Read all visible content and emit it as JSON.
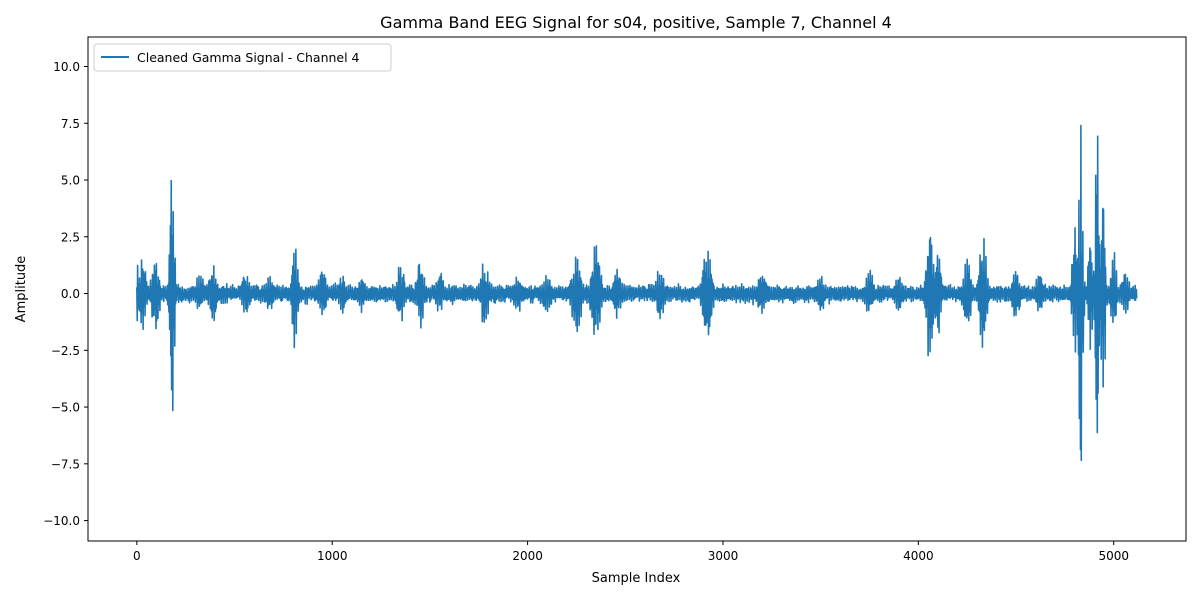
{
  "chart_data": {
    "type": "line",
    "title": "Gamma Band EEG Signal for s04, positive, Sample 7, Channel 4",
    "xlabel": "Sample Index",
    "ylabel": "Amplitude",
    "xlim": [
      -250,
      5370
    ],
    "ylim": [
      -10.9,
      11.3
    ],
    "xticks": [
      0,
      1000,
      2000,
      3000,
      4000,
      5000
    ],
    "yticks": [
      -10.0,
      -7.5,
      -5.0,
      -2.5,
      0.0,
      2.5,
      5.0,
      7.5,
      10.0
    ],
    "xtick_labels": [
      "0",
      "1000",
      "2000",
      "3000",
      "4000",
      "5000"
    ],
    "ytick_labels": [
      "−10.0",
      "−7.5",
      "−5.0",
      "−2.5",
      "0.0",
      "2.5",
      "5.0",
      "7.5",
      "10.0"
    ],
    "grid": false,
    "legend_position": "top-left",
    "n_samples": 5120,
    "series": [
      {
        "name": "Cleaned Gamma Signal - Channel 4",
        "color": "#1f77b4",
        "baseline_amplitude": 0.5,
        "bursts": [
          {
            "x": 5,
            "amp": 1.6,
            "width": 12
          },
          {
            "x": 30,
            "amp": 2.0,
            "width": 20
          },
          {
            "x": 95,
            "amp": 1.8,
            "width": 25
          },
          {
            "x": 180,
            "amp": 7.0,
            "width": 14
          },
          {
            "x": 320,
            "amp": 1.0,
            "width": 30
          },
          {
            "x": 390,
            "amp": 1.3,
            "width": 25
          },
          {
            "x": 560,
            "amp": 1.0,
            "width": 30
          },
          {
            "x": 680,
            "amp": 0.9,
            "width": 30
          },
          {
            "x": 810,
            "amp": 3.0,
            "width": 18
          },
          {
            "x": 950,
            "amp": 1.2,
            "width": 25
          },
          {
            "x": 1050,
            "amp": 1.0,
            "width": 25
          },
          {
            "x": 1150,
            "amp": 0.9,
            "width": 25
          },
          {
            "x": 1350,
            "amp": 1.5,
            "width": 25
          },
          {
            "x": 1450,
            "amp": 1.7,
            "width": 25
          },
          {
            "x": 1550,
            "amp": 1.0,
            "width": 25
          },
          {
            "x": 1780,
            "amp": 1.6,
            "width": 25
          },
          {
            "x": 1950,
            "amp": 0.9,
            "width": 30
          },
          {
            "x": 2100,
            "amp": 0.9,
            "width": 30
          },
          {
            "x": 2250,
            "amp": 2.0,
            "width": 30
          },
          {
            "x": 2350,
            "amp": 2.3,
            "width": 30
          },
          {
            "x": 2460,
            "amp": 1.2,
            "width": 25
          },
          {
            "x": 2680,
            "amp": 1.4,
            "width": 25
          },
          {
            "x": 2920,
            "amp": 2.5,
            "width": 28
          },
          {
            "x": 3200,
            "amp": 1.0,
            "width": 30
          },
          {
            "x": 3500,
            "amp": 0.9,
            "width": 30
          },
          {
            "x": 3750,
            "amp": 1.2,
            "width": 25
          },
          {
            "x": 3900,
            "amp": 1.0,
            "width": 25
          },
          {
            "x": 4060,
            "amp": 3.8,
            "width": 22
          },
          {
            "x": 4100,
            "amp": 2.2,
            "width": 20
          },
          {
            "x": 4250,
            "amp": 1.8,
            "width": 25
          },
          {
            "x": 4330,
            "amp": 2.7,
            "width": 25
          },
          {
            "x": 4500,
            "amp": 1.4,
            "width": 25
          },
          {
            "x": 4620,
            "amp": 1.0,
            "width": 25
          },
          {
            "x": 4800,
            "amp": 3.4,
            "width": 15
          },
          {
            "x": 4830,
            "amp": 8.8,
            "width": 14
          },
          {
            "x": 4880,
            "amp": 3.0,
            "width": 14
          },
          {
            "x": 4915,
            "amp": 10.2,
            "width": 12
          },
          {
            "x": 4945,
            "amp": 5.5,
            "width": 14
          },
          {
            "x": 5000,
            "amp": 2.0,
            "width": 20
          },
          {
            "x": 5060,
            "amp": 1.0,
            "width": 25
          }
        ]
      }
    ]
  }
}
